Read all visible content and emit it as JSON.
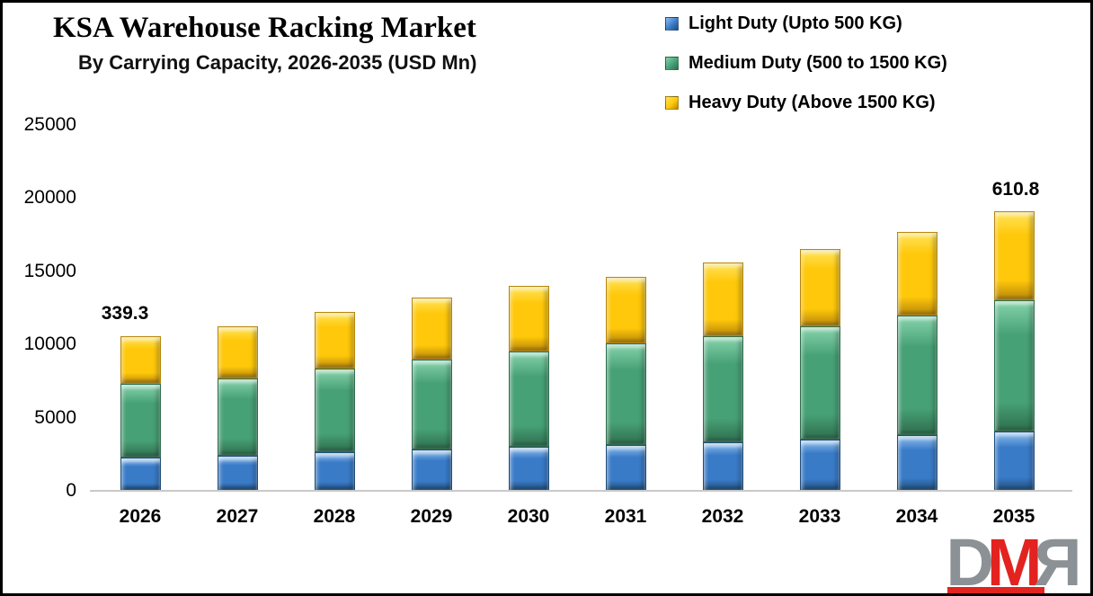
{
  "header": {
    "title": "KSA Warehouse Racking Market",
    "subtitle": "By Carrying Capacity, 2026-2035 (USD Mn)"
  },
  "legend": {
    "items": [
      {
        "label": "Light Duty (Upto 500 KG)",
        "color": "#3a7bc8",
        "light": "#8fc0ee",
        "dark": "#1f4e79"
      },
      {
        "label": "Medium Duty (500 to 1500 KG)",
        "color": "#47a176",
        "light": "#86d3ab",
        "dark": "#2e6e4e"
      },
      {
        "label": "Heavy Duty (Above 1500 KG)",
        "color": "#ffc80a",
        "light": "#ffe45c",
        "dark": "#b8860b"
      }
    ]
  },
  "chart_data": {
    "type": "bar",
    "stacked": true,
    "title": "KSA Warehouse Racking Market",
    "subtitle": "By Carrying Capacity, 2026-2035 (USD Mn)",
    "categories": [
      "2026",
      "2027",
      "2028",
      "2029",
      "2030",
      "2031",
      "2032",
      "2033",
      "2034",
      "2035"
    ],
    "series": [
      {
        "name": "Light Duty (Upto 500 KG)",
        "color": "#3a7bc8",
        "light": "#8fc0ee",
        "dark": "#1f4e79",
        "values": [
          2250,
          2400,
          2650,
          2850,
          3000,
          3150,
          3300,
          3500,
          3800,
          4050
        ]
      },
      {
        "name": "Medium Duty (500 to 1500 KG)",
        "color": "#47a176",
        "light": "#86d3ab",
        "dark": "#2e6e4e",
        "values": [
          5050,
          5300,
          5700,
          6150,
          6550,
          6900,
          7300,
          7750,
          8200,
          8950
        ]
      },
      {
        "name": "Heavy Duty (Above 1500 KG)",
        "color": "#ffc80a",
        "light": "#ffe45c",
        "dark": "#b8860b",
        "values": [
          3300,
          3550,
          3900,
          4200,
          4450,
          4600,
          5000,
          5300,
          5700,
          6100
        ]
      }
    ],
    "totals": [
      10600,
      11250,
      12250,
      13200,
      14000,
      14650,
      15600,
      16550,
      17700,
      19100
    ],
    "ylim": [
      0,
      25000
    ],
    "yticks": [
      0,
      5000,
      10000,
      15000,
      20000,
      25000
    ],
    "grid": false,
    "legend_position": "top-right",
    "annotations": [
      {
        "text": "339.3",
        "category": "2026",
        "dx": -17
      },
      {
        "text": "610.8",
        "category": "2035",
        "dx": 2
      }
    ]
  },
  "logo": {
    "d": "D",
    "m": "M",
    "r": "R"
  }
}
